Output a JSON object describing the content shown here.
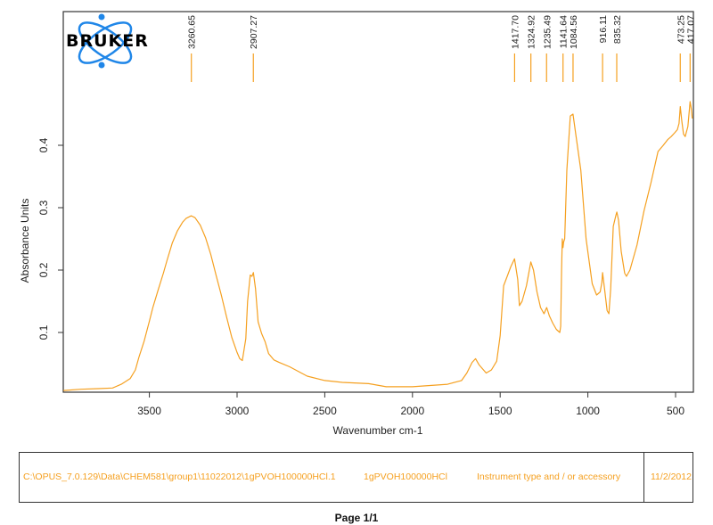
{
  "logo": {
    "text": "BRUKER",
    "orbit_color": "#1f86e8"
  },
  "chart_data": {
    "type": "line",
    "title": "",
    "xlabel": "Wavenumber cm-1",
    "ylabel": "Absorbance Units",
    "xlim": [
      3990,
      400
    ],
    "ylim": [
      0.0,
      0.61
    ],
    "x_ticks": [
      3500,
      3000,
      2500,
      2000,
      1500,
      1000,
      500
    ],
    "x_tick_labels": [
      "3500",
      "3000",
      "2500",
      "2000",
      "1500",
      "1000",
      "500"
    ],
    "y_ticks": [
      0.1,
      0.2,
      0.3,
      0.4
    ],
    "y_tick_labels": [
      "0.1",
      "0.2",
      "0.3",
      "0.4"
    ],
    "grid": false,
    "line_color": "#f5a020",
    "peak_labels": [
      "3260.65",
      "2907.27",
      "1417.70",
      "1324.92",
      "1235.49",
      "1141.64",
      "1084.56",
      "916.11",
      "835.32",
      "473.25",
      "417.07"
    ],
    "peaks": [
      3260.65,
      2907.27,
      1417.7,
      1324.92,
      1235.49,
      1141.64,
      1084.56,
      916.11,
      835.32,
      473.25,
      417.07
    ],
    "series": [
      {
        "name": "1gPVOH100000HCl",
        "x": [
          3990,
          3890,
          3790,
          3710,
          3660,
          3610,
          3580,
          3560,
          3530,
          3500,
          3480,
          3450,
          3420,
          3400,
          3370,
          3340,
          3310,
          3290,
          3261,
          3240,
          3210,
          3180,
          3150,
          3120,
          3090,
          3060,
          3030,
          3000,
          2985,
          2970,
          2950,
          2940,
          2925,
          2915,
          2907,
          2895,
          2880,
          2860,
          2840,
          2820,
          2790,
          2760,
          2700,
          2600,
          2500,
          2400,
          2250,
          2150,
          2000,
          1900,
          1800,
          1720,
          1690,
          1660,
          1640,
          1620,
          1580,
          1550,
          1520,
          1500,
          1480,
          1460,
          1440,
          1418,
          1400,
          1390,
          1375,
          1350,
          1325,
          1310,
          1290,
          1270,
          1250,
          1235,
          1220,
          1200,
          1180,
          1160,
          1155,
          1150,
          1146,
          1142,
          1138,
          1132,
          1120,
          1100,
          1085,
          1070,
          1040,
          1010,
          975,
          950,
          930,
          920,
          916,
          905,
          890,
          880,
          870,
          855,
          840,
          835,
          825,
          810,
          790,
          780,
          760,
          720,
          680,
          640,
          600,
          570,
          545,
          525,
          505,
          490,
          480,
          473,
          465,
          455,
          445,
          430,
          417,
          410,
          405
        ],
        "y": [
          0.007,
          0.009,
          0.01,
          0.011,
          0.017,
          0.026,
          0.04,
          0.06,
          0.086,
          0.118,
          0.14,
          0.168,
          0.195,
          0.215,
          0.243,
          0.263,
          0.277,
          0.283,
          0.287,
          0.284,
          0.272,
          0.252,
          0.225,
          0.192,
          0.16,
          0.125,
          0.092,
          0.068,
          0.058,
          0.055,
          0.09,
          0.15,
          0.192,
          0.19,
          0.196,
          0.17,
          0.117,
          0.098,
          0.085,
          0.066,
          0.056,
          0.052,
          0.045,
          0.03,
          0.023,
          0.02,
          0.018,
          0.013,
          0.013,
          0.015,
          0.017,
          0.023,
          0.035,
          0.052,
          0.058,
          0.048,
          0.035,
          0.04,
          0.054,
          0.095,
          0.175,
          0.19,
          0.205,
          0.218,
          0.185,
          0.143,
          0.15,
          0.175,
          0.213,
          0.2,
          0.165,
          0.14,
          0.13,
          0.14,
          0.127,
          0.115,
          0.105,
          0.1,
          0.11,
          0.2,
          0.25,
          0.236,
          0.245,
          0.25,
          0.36,
          0.447,
          0.45,
          0.42,
          0.36,
          0.25,
          0.178,
          0.16,
          0.165,
          0.18,
          0.196,
          0.17,
          0.135,
          0.13,
          0.17,
          0.27,
          0.288,
          0.293,
          0.28,
          0.23,
          0.195,
          0.19,
          0.2,
          0.24,
          0.295,
          0.34,
          0.39,
          0.4,
          0.409,
          0.414,
          0.42,
          0.425,
          0.435,
          0.462,
          0.44,
          0.418,
          0.414,
          0.43,
          0.47,
          0.458,
          0.443
        ]
      }
    ]
  },
  "footer": {
    "file_path": "C:\\OPUS_7.0.129\\Data\\CHEM581\\group1\\11022012\\1gPVOH100000HCl.1",
    "sample_name": "1gPVOH100000HCl",
    "instrument": "Instrument type and / or accessory",
    "date": "11/2/2012"
  },
  "page_label": "Page 1/1"
}
